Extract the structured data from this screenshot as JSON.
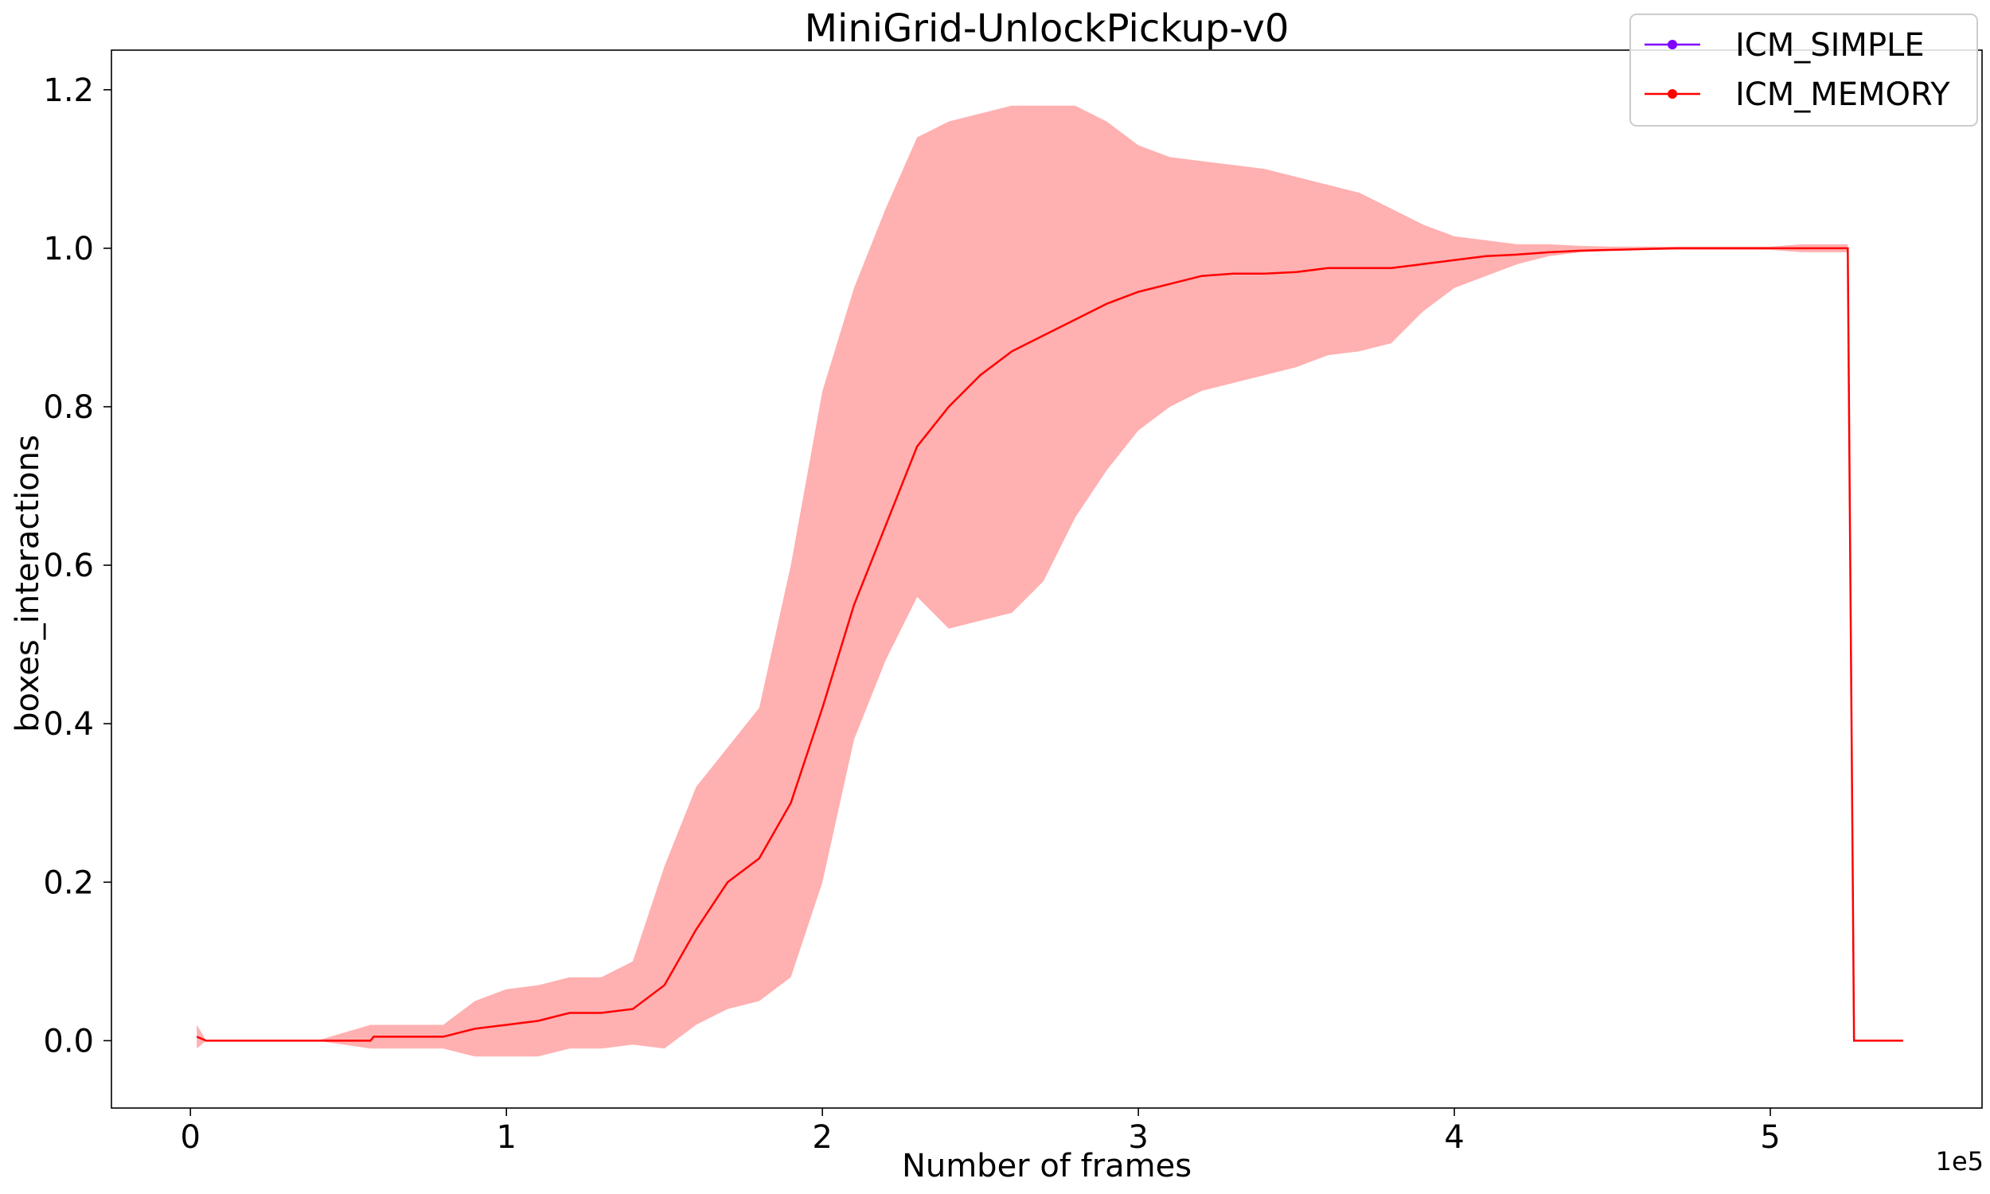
{
  "chart_data": {
    "type": "line",
    "title": "MiniGrid-UnlockPickup-v0",
    "xlabel": "Number of frames",
    "ylabel": "boxes_interactions",
    "x_offset_label": "1e5",
    "xlim": [
      -25000,
      567000
    ],
    "ylim": [
      -0.085,
      1.25
    ],
    "x_ticks": [
      0,
      100000,
      200000,
      300000,
      400000,
      500000
    ],
    "x_tick_labels": [
      "0",
      "1",
      "2",
      "3",
      "4",
      "5"
    ],
    "y_ticks": [
      0.0,
      0.2,
      0.4,
      0.6,
      0.8,
      1.0,
      1.2
    ],
    "y_tick_labels": [
      "0.0",
      "0.2",
      "0.4",
      "0.6",
      "0.8",
      "1.0",
      "1.2"
    ],
    "grid": false,
    "legend_position": "top-right",
    "series": [
      {
        "name": "ICM_SIMPLE",
        "color": "#8000ff",
        "x": [],
        "mean": [],
        "upper": [],
        "lower": []
      },
      {
        "name": "ICM_MEMORY",
        "color": "#ff0000",
        "band_color": "#ffb0b0",
        "x": [
          2000,
          5000,
          40000,
          57000,
          58000,
          80000,
          90000,
          100000,
          110000,
          120000,
          130000,
          140000,
          150000,
          160000,
          170000,
          180000,
          190000,
          200000,
          210000,
          220000,
          230000,
          240000,
          250000,
          260000,
          270000,
          280000,
          290000,
          300000,
          310000,
          320000,
          330000,
          340000,
          350000,
          360000,
          370000,
          380000,
          390000,
          400000,
          410000,
          420000,
          430000,
          440000,
          450000,
          460000,
          470000,
          480000,
          490000,
          500000,
          510000,
          520000,
          524500,
          526500,
          542000
        ],
        "mean": [
          0.005,
          0.0,
          0.0,
          0.0,
          0.005,
          0.005,
          0.015,
          0.02,
          0.025,
          0.035,
          0.035,
          0.04,
          0.07,
          0.14,
          0.2,
          0.23,
          0.3,
          0.42,
          0.55,
          0.65,
          0.75,
          0.8,
          0.84,
          0.87,
          0.89,
          0.91,
          0.93,
          0.945,
          0.955,
          0.965,
          0.968,
          0.968,
          0.97,
          0.975,
          0.975,
          0.975,
          0.98,
          0.985,
          0.99,
          0.992,
          0.995,
          0.997,
          0.998,
          0.999,
          1.0,
          1.0,
          1.0,
          1.0,
          1.0,
          1.0,
          1.0,
          0.0,
          0.0
        ],
        "upper": [
          0.02,
          0.0,
          0.0,
          0.02,
          0.02,
          0.02,
          0.05,
          0.065,
          0.07,
          0.08,
          0.08,
          0.1,
          0.22,
          0.32,
          0.37,
          0.42,
          0.6,
          0.82,
          0.95,
          1.05,
          1.14,
          1.16,
          1.17,
          1.18,
          1.18,
          1.18,
          1.16,
          1.13,
          1.115,
          1.11,
          1.105,
          1.1,
          1.09,
          1.08,
          1.07,
          1.05,
          1.03,
          1.015,
          1.01,
          1.005,
          1.005,
          1.003,
          1.002,
          1.002,
          1.002,
          1.002,
          1.002,
          1.002,
          1.005,
          1.005,
          1.005,
          0.0,
          0.0
        ],
        "lower": [
          -0.01,
          0.0,
          0.0,
          -0.01,
          -0.01,
          -0.01,
          -0.02,
          -0.02,
          -0.02,
          -0.01,
          -0.01,
          -0.005,
          -0.01,
          0.02,
          0.04,
          0.05,
          0.08,
          0.2,
          0.38,
          0.48,
          0.56,
          0.52,
          0.53,
          0.54,
          0.58,
          0.66,
          0.72,
          0.77,
          0.8,
          0.82,
          0.83,
          0.84,
          0.85,
          0.865,
          0.87,
          0.88,
          0.92,
          0.95,
          0.965,
          0.98,
          0.99,
          0.995,
          0.997,
          0.998,
          0.998,
          0.998,
          0.998,
          0.998,
          0.995,
          0.995,
          0.995,
          0.0,
          0.0
        ]
      }
    ]
  }
}
